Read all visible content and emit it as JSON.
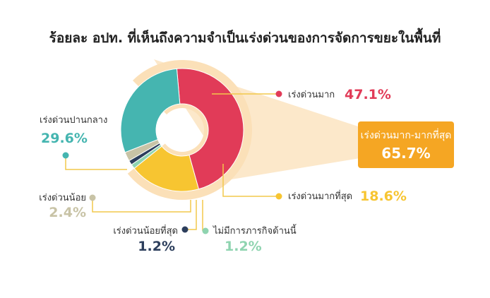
{
  "chart_data": {
    "type": "pie",
    "title": "ร้อยละ อปท. ที่เห็นถึงความจำเป็นเร่งด่วนของการจัดการขยะในพื้นที่",
    "slices": [
      {
        "label": "เร่งด่วนมาก",
        "value": 47.1,
        "value_label": "47.1%",
        "color": "#e13b58"
      },
      {
        "label": "เร่งด่วนมากที่สุด",
        "value": 18.6,
        "value_label": "18.6%",
        "color": "#f7c531"
      },
      {
        "label": "ไม่มีการภารกิจด้านนี้",
        "value": 1.2,
        "value_label": "1.2%",
        "color": "#8fd4b0"
      },
      {
        "label": "เร่งด่วนน้อยที่สุด",
        "value": 1.2,
        "value_label": "1.2%",
        "color": "#2c3e5c"
      },
      {
        "label": "เร่งด่วนน้อย",
        "value": 2.4,
        "value_label": "2.4%",
        "color": "#c8c3a6"
      },
      {
        "label": "เร่งด่วนปานกลาง",
        "value": 29.6,
        "value_label": "29.6%",
        "color": "#45b5b0"
      }
    ],
    "callout": {
      "label": "เร่งด่วนมาก-มากที่สุด",
      "value": 65.7,
      "value_label": "65.7%",
      "color": "#f5a623"
    },
    "highlight_color": "#fbe0b8"
  }
}
